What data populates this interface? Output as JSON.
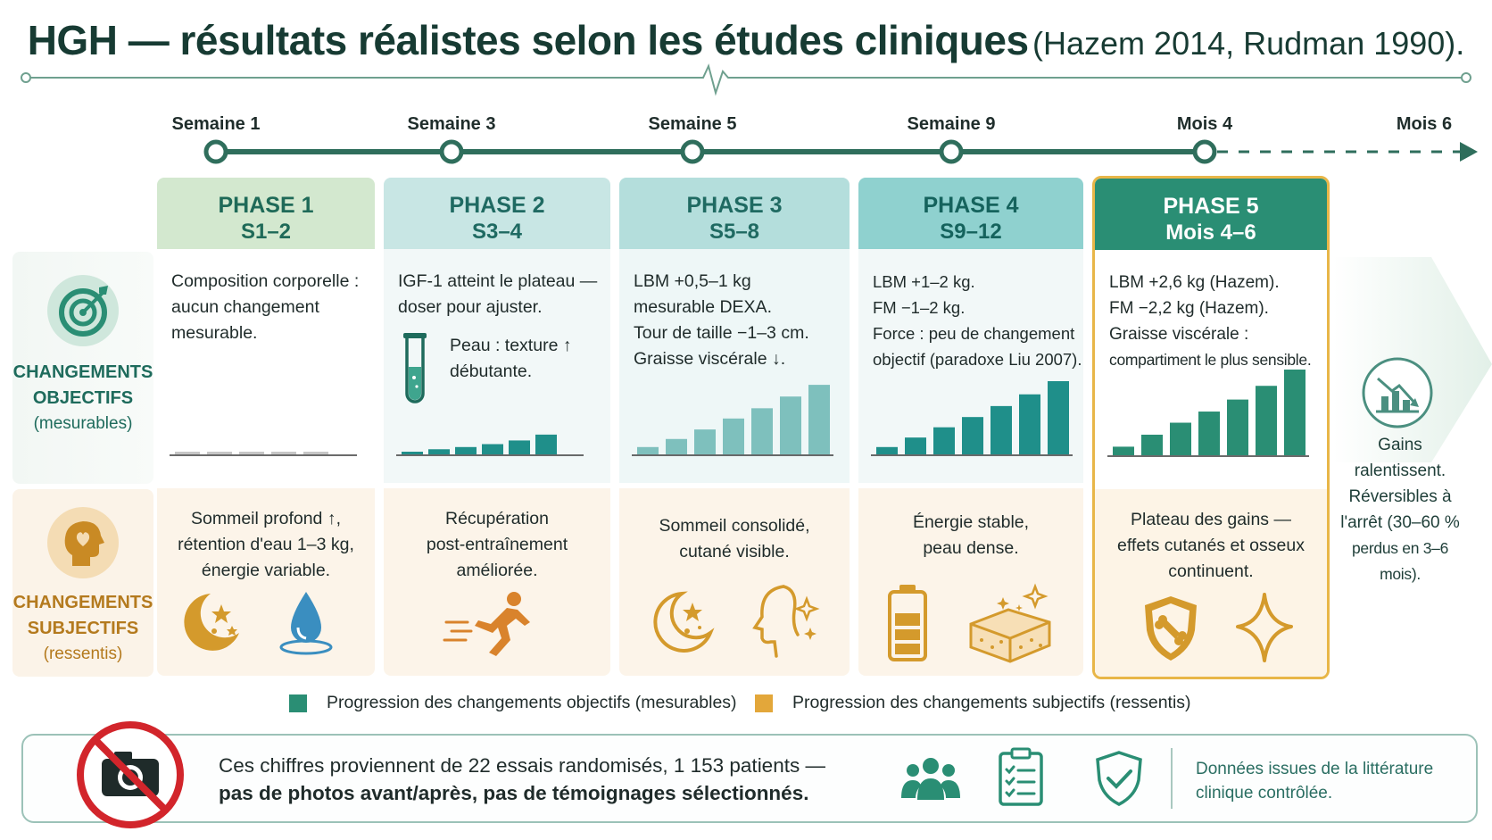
{
  "title": {
    "main": "HGH — résultats réalistes selon les études cliniques",
    "sub": "(Hazem 2014, Rudman 1990)."
  },
  "timeline": {
    "labels": [
      "Semaine 1",
      "Semaine 3",
      "Semaine 5",
      "Semaine 9",
      "Mois 4",
      "Mois 6"
    ]
  },
  "rows": {
    "objective": {
      "title_line1": "CHANGEMENTS",
      "title_line2": "OBJECTIFS",
      "sub": "(mesurables)"
    },
    "subjective": {
      "title_line1": "CHANGEMENTS",
      "title_line2": "SUBJECTIFS",
      "sub": "(ressentis)"
    }
  },
  "phases": [
    {
      "name": "PHASE 1",
      "range": "S1–2",
      "objective": [
        "Composition corporelle :",
        "aucun changement",
        "mesurable."
      ],
      "subjective": [
        "Sommeil profond ↑,",
        "rétention d'eau 1–3 kg,",
        "énergie variable."
      ],
      "bar_progress": [
        0.02,
        0.02,
        0.02,
        0.02,
        0.02
      ]
    },
    {
      "name": "PHASE 2",
      "range": "S3–4",
      "objective": [
        "IGF-1 atteint le plateau —",
        "doser pour ajuster."
      ],
      "objective_extra": [
        "Peau : texture ↑",
        "débutante."
      ],
      "subjective": [
        "Récupération",
        "post-entraînement",
        "améliorée."
      ],
      "bar_progress": [
        0.03,
        0.07,
        0.1,
        0.14,
        0.19,
        0.27
      ]
    },
    {
      "name": "PHASE 3",
      "range": "S5–8",
      "objective": [
        "LBM +0,5–1 kg",
        "mesurable DEXA.",
        "Tour de taille −1–3 cm.",
        "Graisse viscérale ↓."
      ],
      "subjective": [
        "Sommeil consolidé,",
        "cutané visible."
      ],
      "bar_progress": [
        0.1,
        0.21,
        0.34,
        0.49,
        0.63,
        0.79,
        0.95
      ]
    },
    {
      "name": "PHASE 4",
      "range": "S9–12",
      "objective": [
        "LBM +1–2 kg.",
        "FM −1–2 kg.",
        "Force : peu de changement",
        "objectif (paradoxe Liu 2007)."
      ],
      "subjective": [
        "Énergie stable,",
        "peau dense."
      ],
      "bar_progress": [
        0.1,
        0.23,
        0.37,
        0.51,
        0.66,
        0.82,
        1.0
      ]
    },
    {
      "name": "PHASE 5",
      "range": "Mois 4–6",
      "objective": [
        "LBM +2,6 kg (Hazem).",
        "FM −2,2 kg (Hazem).",
        "Graisse viscérale :",
        "compartiment le plus sensible."
      ],
      "subjective": [
        "Plateau des gains —",
        "effets cutanés et osseux",
        "continuent."
      ],
      "bar_progress": [
        0.1,
        0.24,
        0.38,
        0.51,
        0.65,
        0.81,
        1.0
      ]
    }
  ],
  "final_note": [
    "Gains",
    "ralentissent.",
    "Réversibles à",
    "l'arrêt (30–60 %",
    "perdus en 3–6 mois)."
  ],
  "legend": {
    "objective": "Progression des changements objectifs (mesurables)",
    "subjective": "Progression des changements subjectifs (ressentis)"
  },
  "bottom": {
    "line1": "Ces chiffres proviennent de 22 essais randomisés, 1 153 patients —",
    "line2": "pas de photos avant/après, pas de témoignages sélectionnés.",
    "note_line1": "Données issues de la littérature",
    "note_line2": "clinique contrôlée."
  },
  "colors": {
    "teal": "#2a8e74",
    "gold": "#e3a73a",
    "dark_green": "#173b33"
  }
}
